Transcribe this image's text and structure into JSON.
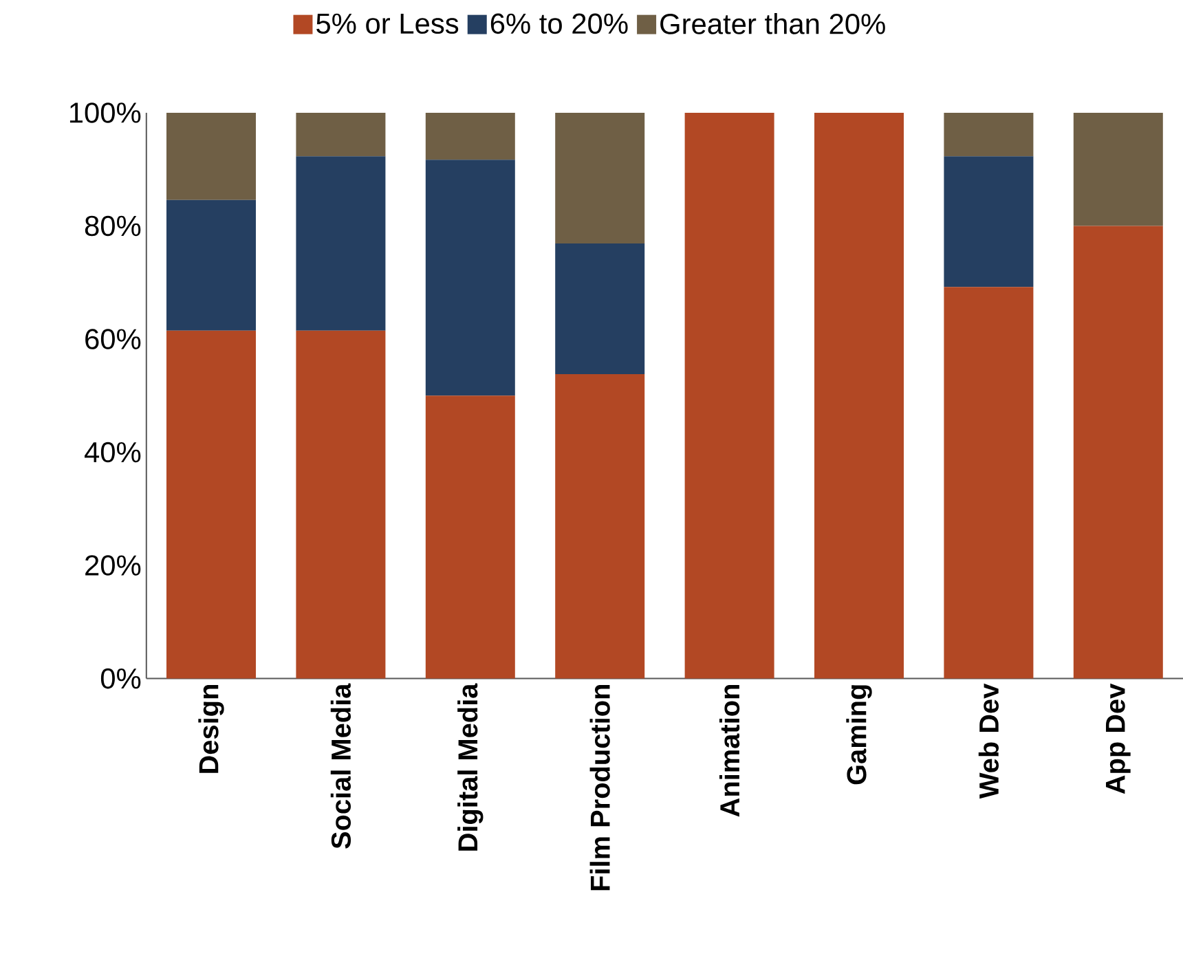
{
  "chart_data": {
    "type": "bar",
    "stacked": true,
    "legend": "top",
    "categories": [
      "Design",
      "Social Media",
      "Digital Media",
      "Film Production",
      "Animation",
      "Gaming",
      "Web Dev",
      "App Dev"
    ],
    "series": [
      {
        "name": "5% or Less",
        "color": "#b24824",
        "values": [
          61.5,
          61.5,
          50,
          53.8,
          100,
          100,
          69.2,
          80
        ]
      },
      {
        "name": "6% to 20%",
        "color": "#253f61",
        "values": [
          23.1,
          30.8,
          41.7,
          23.1,
          0,
          0,
          23.1,
          0
        ]
      },
      {
        "name": "Greater than 20%",
        "color": "#6f5f45",
        "values": [
          15.4,
          7.7,
          8.3,
          23.1,
          0,
          0,
          7.7,
          20
        ]
      }
    ],
    "ylim": [
      0,
      100
    ],
    "yticks": [
      {
        "value": 0,
        "label": "0%"
      },
      {
        "value": 20,
        "label": "20%"
      },
      {
        "value": 40,
        "label": "40%"
      },
      {
        "value": 60,
        "label": "60%"
      },
      {
        "value": 80,
        "label": "80%"
      },
      {
        "value": 100,
        "label": "100%"
      }
    ]
  }
}
